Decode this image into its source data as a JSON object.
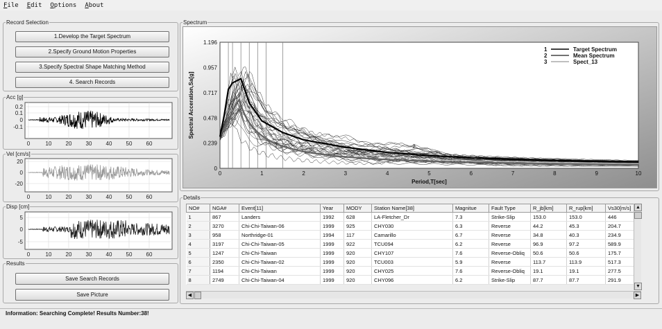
{
  "menu": [
    {
      "first": "F",
      "rest": "ile"
    },
    {
      "first": "E",
      "rest": "dit"
    },
    {
      "first": "O",
      "rest": "ptions"
    },
    {
      "first": "A",
      "rest": "bout"
    }
  ],
  "record_selection": {
    "legend": "Record Selection",
    "buttons": [
      "1.Develop the Target Spectrum",
      "2.Specify Ground Motion  Properties",
      "3.Specify Spectral Shape Matching Method",
      "4. Search Records"
    ]
  },
  "acc_chart": {
    "legend": "Acc [g]",
    "yticks": [
      "0.2",
      "0.1",
      "0",
      "-0.1"
    ],
    "xticks": [
      "0",
      "10",
      "20",
      "30",
      "40",
      "50",
      "60"
    ]
  },
  "vel_chart": {
    "legend": "Vel [cm/s]",
    "yticks": [
      "20",
      "0",
      "-20"
    ],
    "xticks": [
      "0",
      "10",
      "20",
      "30",
      "40",
      "50",
      "60"
    ]
  },
  "disp_chart": {
    "legend": "Disp [cm]",
    "yticks": [
      "5",
      "0",
      "-5"
    ],
    "xticks": [
      "0",
      "10",
      "20",
      "30",
      "40",
      "50",
      "60"
    ]
  },
  "results": {
    "legend": "Results",
    "save_records": "Save Search Records",
    "save_picture": "Save Picture"
  },
  "spectrum": {
    "legend": "Spectrum",
    "ylabel": "Spectral Acceration,Sa[g]",
    "xlabel": "Period,T[sec]",
    "yticks": [
      "0",
      "0.239",
      "0.478",
      "0.717",
      "0.957",
      "1.196"
    ],
    "xticks": [
      "0",
      "1",
      "2",
      "3",
      "4",
      "5",
      "6",
      "7",
      "8",
      "9",
      "10"
    ],
    "legend_entries": [
      {
        "num": "1",
        "name": "Target Spectrum"
      },
      {
        "num": "2",
        "name": "Mean Spectrum"
      },
      {
        "num": "3",
        "name": "Spect_13"
      }
    ],
    "curve_labels": [
      "2",
      "3"
    ]
  },
  "details": {
    "legend": "Details",
    "columns": [
      "NO#",
      "NGA#",
      "Event[11]",
      "Year",
      "MODY",
      "Station Name[38]",
      "Magnitue",
      "Fault Type",
      "R_jb[km]",
      "R_rup[km]",
      "Vs30[m/s]"
    ],
    "rows": [
      [
        "1",
        "867",
        "Landers",
        "1992",
        "628",
        "LA-Fletcher_Dr",
        "7.3",
        "Strike-Slip",
        "153.0",
        "153.0",
        "446"
      ],
      [
        "2",
        "3270",
        "Chi-Chi-Taiwan-06",
        "1999",
        "925",
        "CHY030",
        "6.3",
        "Reverse",
        "44.2",
        "45.3",
        "204.7"
      ],
      [
        "3",
        "958",
        "Northridge-01",
        "1994",
        "117",
        "Camarillo",
        "6.7",
        "Reverse",
        "34.8",
        "40.3",
        "234.9"
      ],
      [
        "4",
        "3197",
        "Chi-Chi-Taiwan-05",
        "1999",
        "922",
        "TCU094",
        "6.2",
        "Reverse",
        "96.9",
        "97.2",
        "589.9"
      ],
      [
        "5",
        "1247",
        "Chi-Chi-Taiwan",
        "1999",
        "920",
        "CHY107",
        "7.6",
        "Reverse-Obliq",
        "50.6",
        "50.6",
        "175.7"
      ],
      [
        "6",
        "2350",
        "Chi-Chi-Taiwan-02",
        "1999",
        "920",
        "TCU003",
        "5.9",
        "Reverse",
        "113.7",
        "113.9",
        "517.3"
      ],
      [
        "7",
        "1194",
        "Chi-Chi-Taiwan",
        "1999",
        "920",
        "CHY025",
        "7.6",
        "Reverse-Obliq",
        "19.1",
        "19.1",
        "277.5"
      ],
      [
        "8",
        "2749",
        "Chi-Chi-Taiwan-04",
        "1999",
        "920",
        "CHY096",
        "6.2",
        "Strike-Slip",
        "87.7",
        "87.7",
        "291.9"
      ]
    ]
  },
  "status": "Information: Searching Complete! Results Number:38!"
}
